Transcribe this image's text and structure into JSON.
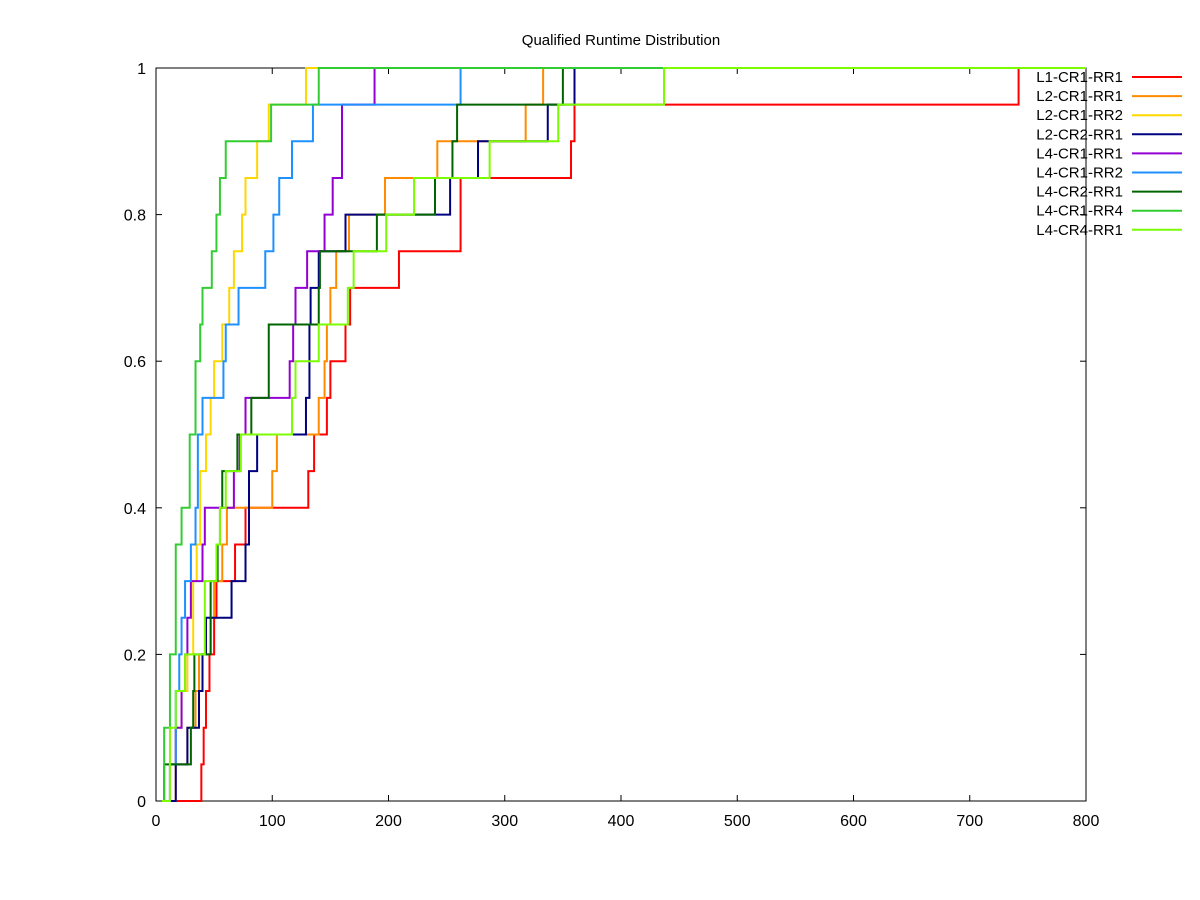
{
  "chart_data": {
    "type": "line",
    "step": true,
    "title": "Qualified Runtime Distribution",
    "xlabel": "",
    "ylabel": "",
    "xlim": [
      0,
      800
    ],
    "ylim": [
      0,
      1
    ],
    "xticks": [
      "0",
      "100",
      "200",
      "300",
      "400",
      "500",
      "600",
      "700",
      "800"
    ],
    "yticks": [
      "0",
      "0.2",
      "0.4",
      "0.6",
      "0.8",
      "1"
    ],
    "grid": false,
    "legend_position": "top-right",
    "series": [
      {
        "name": "L1-CR1-RR1",
        "color": "#ff0000",
        "points": [
          [
            5,
            0
          ],
          [
            39,
            0
          ],
          [
            39,
            0.05
          ],
          [
            41,
            0.1
          ],
          [
            43,
            0.15
          ],
          [
            46,
            0.2
          ],
          [
            50,
            0.25
          ],
          [
            52,
            0.3
          ],
          [
            68,
            0.35
          ],
          [
            77,
            0.35
          ],
          [
            77,
            0.4
          ],
          [
            87,
            0.4
          ],
          [
            87,
            0.4
          ],
          [
            131,
            0.4
          ],
          [
            131,
            0.45
          ],
          [
            136,
            0.5
          ],
          [
            147,
            0.5
          ],
          [
            147,
            0.55
          ],
          [
            150,
            0.6
          ],
          [
            163,
            0.6
          ],
          [
            163,
            0.65
          ],
          [
            167,
            0.7
          ],
          [
            209,
            0.7
          ],
          [
            209,
            0.75
          ],
          [
            260,
            0.75
          ],
          [
            262,
            0.85
          ],
          [
            357,
            0.85
          ],
          [
            357,
            0.9
          ],
          [
            360,
            0.95
          ],
          [
            742,
            0.95
          ],
          [
            742,
            1
          ],
          [
            745,
            1
          ]
        ]
      },
      {
        "name": "L2-CR1-RR1",
        "color": "#ff8c00",
        "points": [
          [
            5,
            0
          ],
          [
            17,
            0
          ],
          [
            17,
            0.05
          ],
          [
            27,
            0.1
          ],
          [
            34,
            0.15
          ],
          [
            37,
            0.2
          ],
          [
            47,
            0.25
          ],
          [
            50,
            0.3
          ],
          [
            57,
            0.35
          ],
          [
            61,
            0.4
          ],
          [
            100,
            0.4
          ],
          [
            100,
            0.45
          ],
          [
            104,
            0.5
          ],
          [
            140,
            0.5
          ],
          [
            140,
            0.55
          ],
          [
            145,
            0.55
          ],
          [
            145,
            0.6
          ],
          [
            147,
            0.65
          ],
          [
            150,
            0.7
          ],
          [
            155,
            0.75
          ],
          [
            166,
            0.8
          ],
          [
            197,
            0.8
          ],
          [
            197,
            0.85
          ],
          [
            242,
            0.85
          ],
          [
            242,
            0.9
          ],
          [
            318,
            0.9
          ],
          [
            318,
            0.95
          ],
          [
            333,
            0.95
          ],
          [
            333,
            1
          ],
          [
            800,
            1
          ]
        ]
      },
      {
        "name": "L2-CR1-RR2",
        "color": "#ffd700",
        "points": [
          [
            5,
            0
          ],
          [
            12,
            0
          ],
          [
            12,
            0.05
          ],
          [
            17,
            0.1
          ],
          [
            22,
            0.15
          ],
          [
            27,
            0.2
          ],
          [
            32,
            0.3
          ],
          [
            35,
            0.35
          ],
          [
            38,
            0.45
          ],
          [
            43,
            0.5
          ],
          [
            47,
            0.55
          ],
          [
            50,
            0.6
          ],
          [
            57,
            0.65
          ],
          [
            63,
            0.7
          ],
          [
            67,
            0.75
          ],
          [
            74,
            0.8
          ],
          [
            77,
            0.85
          ],
          [
            87,
            0.9
          ],
          [
            97,
            0.9
          ],
          [
            97,
            0.95
          ],
          [
            129,
            0.95
          ],
          [
            129,
            1
          ],
          [
            800,
            1
          ]
        ]
      },
      {
        "name": "L2-CR2-RR1",
        "color": "#000080",
        "points": [
          [
            5,
            0
          ],
          [
            17,
            0
          ],
          [
            17,
            0.05
          ],
          [
            27,
            0.1
          ],
          [
            30,
            0.1
          ],
          [
            30,
            0.1
          ],
          [
            37,
            0.15
          ],
          [
            40,
            0.2
          ],
          [
            43,
            0.25
          ],
          [
            52,
            0.25
          ],
          [
            62,
            0.25
          ],
          [
            65,
            0.3
          ],
          [
            75,
            0.3
          ],
          [
            77,
            0.35
          ],
          [
            80,
            0.45
          ],
          [
            87,
            0.45
          ],
          [
            87,
            0.5
          ],
          [
            127,
            0.5
          ],
          [
            129,
            0.55
          ],
          [
            132,
            0.65
          ],
          [
            133,
            0.7
          ],
          [
            140,
            0.7
          ],
          [
            140,
            0.75
          ],
          [
            163,
            0.8
          ],
          [
            253,
            0.8
          ],
          [
            253,
            0.85
          ],
          [
            277,
            0.85
          ],
          [
            277,
            0.9
          ],
          [
            337,
            0.9
          ],
          [
            337,
            0.95
          ],
          [
            360,
            0.95
          ],
          [
            360,
            1
          ],
          [
            800,
            1
          ]
        ]
      },
      {
        "name": "L4-CR1-RR1",
        "color": "#9400d3",
        "points": [
          [
            5,
            0
          ],
          [
            12,
            0
          ],
          [
            12,
            0.05
          ],
          [
            17,
            0.1
          ],
          [
            22,
            0.15
          ],
          [
            25,
            0.2
          ],
          [
            27,
            0.25
          ],
          [
            30,
            0.3
          ],
          [
            40,
            0.3
          ],
          [
            40,
            0.35
          ],
          [
            42,
            0.4
          ],
          [
            65,
            0.4
          ],
          [
            67,
            0.45
          ],
          [
            72,
            0.5
          ],
          [
            77,
            0.55
          ],
          [
            115,
            0.55
          ],
          [
            115,
            0.6
          ],
          [
            118,
            0.65
          ],
          [
            120,
            0.7
          ],
          [
            130,
            0.7
          ],
          [
            130,
            0.75
          ],
          [
            145,
            0.75
          ],
          [
            145,
            0.8
          ],
          [
            152,
            0.8
          ],
          [
            152,
            0.85
          ],
          [
            160,
            0.85
          ],
          [
            160,
            0.95
          ],
          [
            188,
            0.95
          ],
          [
            188,
            1
          ],
          [
            800,
            1
          ]
        ]
      },
      {
        "name": "L4-CR1-RR2",
        "color": "#1e90ff",
        "points": [
          [
            5,
            0
          ],
          [
            12,
            0
          ],
          [
            12,
            0.05
          ],
          [
            17,
            0.15
          ],
          [
            20,
            0.2
          ],
          [
            22,
            0.25
          ],
          [
            25,
            0.3
          ],
          [
            30,
            0.3
          ],
          [
            30,
            0.35
          ],
          [
            34,
            0.4
          ],
          [
            36,
            0.5
          ],
          [
            40,
            0.55
          ],
          [
            58,
            0.55
          ],
          [
            58,
            0.6
          ],
          [
            60,
            0.65
          ],
          [
            71,
            0.65
          ],
          [
            71,
            0.7
          ],
          [
            94,
            0.7
          ],
          [
            94,
            0.75
          ],
          [
            101,
            0.75
          ],
          [
            101,
            0.8
          ],
          [
            106,
            0.8
          ],
          [
            106,
            0.85
          ],
          [
            117,
            0.85
          ],
          [
            117,
            0.9
          ],
          [
            135,
            0.9
          ],
          [
            135,
            0.95
          ],
          [
            262,
            0.95
          ],
          [
            262,
            1
          ],
          [
            800,
            1
          ]
        ]
      },
      {
        "name": "L4-CR2-RR1",
        "color": "#006400",
        "points": [
          [
            5,
            0
          ],
          [
            7,
            0
          ],
          [
            7,
            0.05
          ],
          [
            27,
            0.05
          ],
          [
            30,
            0.1
          ],
          [
            32,
            0.15
          ],
          [
            33,
            0.2
          ],
          [
            47,
            0.2
          ],
          [
            47,
            0.3
          ],
          [
            53,
            0.35
          ],
          [
            55,
            0.4
          ],
          [
            57,
            0.4
          ],
          [
            57,
            0.45
          ],
          [
            70,
            0.45
          ],
          [
            70,
            0.5
          ],
          [
            82,
            0.5
          ],
          [
            82,
            0.55
          ],
          [
            97,
            0.55
          ],
          [
            97,
            0.65
          ],
          [
            140,
            0.65
          ],
          [
            140,
            0.7
          ],
          [
            141,
            0.7
          ],
          [
            141,
            0.75
          ],
          [
            176,
            0.75
          ],
          [
            176,
            0.75
          ],
          [
            190,
            0.75
          ],
          [
            190,
            0.8
          ],
          [
            240,
            0.8
          ],
          [
            240,
            0.85
          ],
          [
            253,
            0.85
          ],
          [
            255,
            0.9
          ],
          [
            259,
            0.95
          ],
          [
            350,
            0.95
          ],
          [
            350,
            1
          ],
          [
            800,
            1
          ]
        ]
      },
      {
        "name": "L4-CR1-RR4",
        "color": "#32cd32",
        "points": [
          [
            5,
            0
          ],
          [
            7,
            0
          ],
          [
            7,
            0.1
          ],
          [
            12,
            0.2
          ],
          [
            17,
            0.35
          ],
          [
            22,
            0.4
          ],
          [
            27,
            0.4
          ],
          [
            29,
            0.5
          ],
          [
            34,
            0.6
          ],
          [
            38,
            0.65
          ],
          [
            40,
            0.7
          ],
          [
            45,
            0.7
          ],
          [
            48,
            0.75
          ],
          [
            52,
            0.8
          ],
          [
            55,
            0.85
          ],
          [
            60,
            0.9
          ],
          [
            99,
            0.9
          ],
          [
            99,
            0.95
          ],
          [
            140,
            0.95
          ],
          [
            140,
            1
          ],
          [
            800,
            1
          ]
        ]
      },
      {
        "name": "L4-CR4-RR1",
        "color": "#7cfc00",
        "points": [
          [
            5,
            0
          ],
          [
            12,
            0
          ],
          [
            12,
            0.1
          ],
          [
            17,
            0.15
          ],
          [
            22,
            0.15
          ],
          [
            25,
            0.2
          ],
          [
            37,
            0.2
          ],
          [
            42,
            0.3
          ],
          [
            48,
            0.3
          ],
          [
            52,
            0.35
          ],
          [
            55,
            0.4
          ],
          [
            60,
            0.45
          ],
          [
            73,
            0.45
          ],
          [
            73,
            0.5
          ],
          [
            117,
            0.5
          ],
          [
            117,
            0.55
          ],
          [
            120,
            0.6
          ],
          [
            140,
            0.6
          ],
          [
            140,
            0.65
          ],
          [
            165,
            0.65
          ],
          [
            165,
            0.7
          ],
          [
            168,
            0.7
          ],
          [
            170,
            0.75
          ],
          [
            198,
            0.75
          ],
          [
            198,
            0.8
          ],
          [
            222,
            0.8
          ],
          [
            222,
            0.85
          ],
          [
            287,
            0.85
          ],
          [
            287,
            0.9
          ],
          [
            346,
            0.9
          ],
          [
            346,
            0.95
          ],
          [
            437,
            0.95
          ],
          [
            437,
            1
          ],
          [
            800,
            1
          ]
        ]
      }
    ]
  }
}
